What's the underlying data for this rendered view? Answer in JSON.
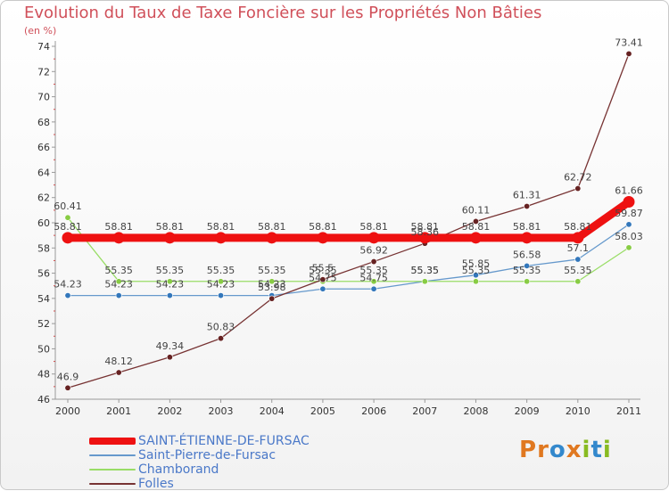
{
  "chart_data": {
    "type": "line",
    "title": "Evolution du Taux de Taxe Foncière sur les Propriétés Non Bâties",
    "unit_label": "(en %)",
    "xlabel": "",
    "ylabel": "(en %)",
    "ylim": [
      46,
      74
    ],
    "yticks": [
      46,
      48,
      50,
      52,
      54,
      56,
      58,
      60,
      62,
      64,
      66,
      68,
      70,
      72,
      74
    ],
    "grid": false,
    "legend_position": "bottom-left",
    "categories": [
      "2000",
      "2001",
      "2002",
      "2003",
      "2004",
      "2005",
      "2006",
      "2007",
      "2008",
      "2009",
      "2010",
      "2011"
    ],
    "series": [
      {
        "name": "SAINT-ÉTIENNE-DE-FURSAC",
        "color": "#ee1111",
        "marker": "#ee1111",
        "values": [
          58.81,
          58.81,
          58.81,
          58.81,
          58.81,
          58.81,
          58.81,
          58.81,
          58.81,
          58.81,
          58.81,
          61.66
        ],
        "labels": [
          "58.81",
          "58.81",
          "58.81",
          "58.81",
          "58.81",
          "58.81",
          "58.81",
          "58.81",
          "58.81",
          "58.81",
          "58.81",
          "61.66"
        ]
      },
      {
        "name": "Saint-Pierre-de-Fursac",
        "color": "#6699cc",
        "marker": "#3377bb",
        "values": [
          54.23,
          54.23,
          54.23,
          54.23,
          54.23,
          54.75,
          54.75,
          55.35,
          55.85,
          56.58,
          57.1,
          59.87
        ],
        "labels": [
          "54.23",
          "54.23",
          "54.23",
          "54.23",
          "54.23",
          "54.75",
          "54.75",
          "55.35",
          "55.85",
          "56.58",
          "57.1",
          "59.87"
        ]
      },
      {
        "name": "Chamborand",
        "color": "#99dd66",
        "marker": "#88cc44",
        "values": [
          60.41,
          55.35,
          55.35,
          55.35,
          55.35,
          55.35,
          55.35,
          55.35,
          55.35,
          55.35,
          55.35,
          58.03
        ],
        "labels": [
          "60.41",
          "55.35",
          "55.35",
          "55.35",
          "55.35",
          "55.35",
          "55.35",
          "55.35",
          "55.35",
          "55.35",
          "55.35",
          "58.03"
        ]
      },
      {
        "name": "Folles",
        "color": "#773333",
        "marker": "#662222",
        "values": [
          46.9,
          48.12,
          49.34,
          50.83,
          53.98,
          55.5,
          56.92,
          58.36,
          60.11,
          61.31,
          62.72,
          73.41
        ],
        "labels": [
          "46.9",
          "48.12",
          "49.34",
          "50.83",
          "53.98",
          "55.5",
          "56.92",
          "58.36",
          "60.11",
          "61.31",
          "62.72",
          "73.41"
        ]
      }
    ]
  },
  "logo": {
    "letters": [
      "P",
      "r",
      "o",
      "x",
      "i",
      "t",
      "i"
    ],
    "colors": [
      "#e07820",
      "#e07820",
      "#3388cc",
      "#e07820",
      "#88bb22",
      "#3388cc",
      "#88bb22"
    ]
  }
}
